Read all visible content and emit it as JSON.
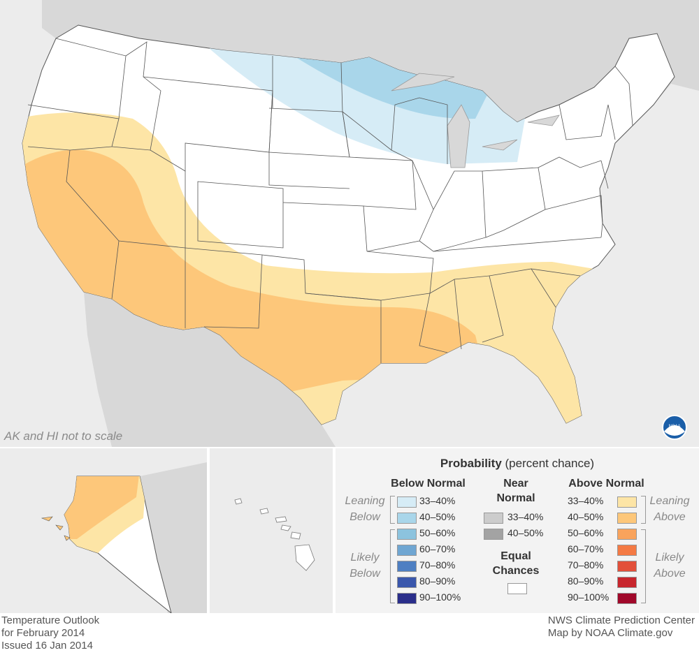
{
  "map": {
    "scale_note": "AK and HI not to scale",
    "logo_text": "NOAA",
    "regions": [
      {
        "label": "Below Normal 33–40%",
        "color": "#d6ecf6"
      },
      {
        "label": "Below Normal 40–50%",
        "color": "#a9d6ea"
      },
      {
        "label": "Above Normal 33–40%",
        "color": "#fde5a6"
      },
      {
        "label": "Above Normal 40–50%",
        "color": "#fdc77a"
      },
      {
        "label": "Equal Chances",
        "color": "#ffffff"
      }
    ]
  },
  "legend": {
    "title_bold": "Probability",
    "title_rest": " (percent chance)",
    "below_header": "Below Normal",
    "near_header_1": "Near",
    "near_header_2": "Normal",
    "above_header": "Above Normal",
    "leaning_below_1": "Leaning",
    "leaning_below_2": "Below",
    "likely_below_1": "Likely",
    "likely_below_2": "Below",
    "leaning_above_1": "Leaning",
    "leaning_above_2": "Above",
    "likely_above_1": "Likely",
    "likely_above_2": "Above",
    "equal_1": "Equal",
    "equal_2": "Chances",
    "below_items": [
      {
        "label": "33–40%",
        "color": "#d6ecf6"
      },
      {
        "label": "40–50%",
        "color": "#a9d6ea"
      },
      {
        "label": "50–60%",
        "color": "#8cc3de"
      },
      {
        "label": "60–70%",
        "color": "#6fa6d2"
      },
      {
        "label": "70–80%",
        "color": "#4e7fc2"
      },
      {
        "label": "80–90%",
        "color": "#3a57ac"
      },
      {
        "label": "90–100%",
        "color": "#2a2e8a"
      }
    ],
    "near_items": [
      {
        "label": "33–40%",
        "color": "#cccccc"
      },
      {
        "label": "40–50%",
        "color": "#a3a3a3"
      }
    ],
    "above_items": [
      {
        "label": "33–40%",
        "color": "#fde5a6"
      },
      {
        "label": "40–50%",
        "color": "#fdc77a"
      },
      {
        "label": "50–60%",
        "color": "#f9a35c"
      },
      {
        "label": "60–70%",
        "color": "#f47a44"
      },
      {
        "label": "70–80%",
        "color": "#e2503a"
      },
      {
        "label": "80–90%",
        "color": "#c8262d"
      },
      {
        "label": "90–100%",
        "color": "#a0082a"
      }
    ],
    "equal_color": "#ffffff"
  },
  "footer": {
    "left_1": "Temperature Outlook",
    "left_2": "for February 2014",
    "left_3": "Issued 16 Jan 2014",
    "right_1": "NWS Climate Prediction Center",
    "right_2": "Map by NOAA Climate.gov"
  }
}
